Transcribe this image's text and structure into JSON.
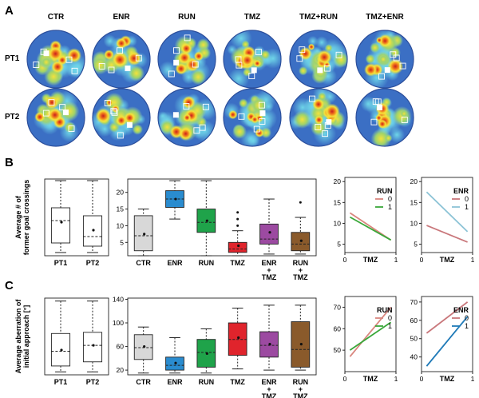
{
  "panel_labels": {
    "a": "A",
    "b": "B",
    "c": "C"
  },
  "heatmaps": {
    "columns": [
      "CTR",
      "ENR",
      "RUN",
      "TMZ",
      "TMZ+RUN",
      "TMZ+ENR"
    ],
    "rows": [
      "PT1",
      "PT2"
    ]
  },
  "chart_data": [
    {
      "id": "B-left",
      "type": "box",
      "ylabel": "Average # of former goal crossings",
      "categories": [
        "PT1",
        "PT2"
      ],
      "ylim": [
        0,
        24
      ],
      "boxes": [
        {
          "min": 1,
          "q1": 4,
          "median": 11,
          "q3": 15,
          "max": 23.5,
          "mean": 10.5
        },
        {
          "min": 1,
          "q1": 3,
          "median": 6,
          "q3": 12.5,
          "max": 23.5,
          "mean": 8
        }
      ],
      "outliers": []
    },
    {
      "id": "B-mid",
      "type": "box",
      "categories": [
        "CTR",
        "ENR",
        "RUN",
        "TMZ",
        "ENR\n+\nTMZ",
        "RUN\n+\nTMZ"
      ],
      "yticks": [
        5,
        10,
        15,
        20
      ],
      "ylim": [
        1,
        24
      ],
      "colors": [
        "#d8d8d8",
        "#2a8ccf",
        "#1fa34a",
        "#e0242c",
        "#9c4aa1",
        "#8a5a2b"
      ],
      "boxes": [
        {
          "min": 1,
          "q1": 2.5,
          "median": 7,
          "q3": 13,
          "max": 15,
          "mean": 7.5
        },
        {
          "min": 12,
          "q1": 15.5,
          "median": 18,
          "q3": 20.5,
          "max": 23.5,
          "mean": 18
        },
        {
          "min": 1,
          "q1": 8,
          "median": 11,
          "q3": 15,
          "max": 23.5,
          "mean": 11.5
        },
        {
          "min": 1,
          "q1": 2,
          "median": 3,
          "q3": 5,
          "max": 8.5,
          "mean": 4
        },
        {
          "min": 1.5,
          "q1": 4.5,
          "median": 6,
          "q3": 10.5,
          "max": 18,
          "mean": 8
        },
        {
          "min": 1.5,
          "q1": 2.5,
          "median": 4.5,
          "q3": 8,
          "max": 12.5,
          "mean": 5.5
        }
      ],
      "outliers": [
        [],
        [],
        [],
        [
          10,
          12,
          14
        ],
        [],
        [
          17
        ]
      ]
    },
    {
      "id": "B-run",
      "type": "line",
      "xlabel": "TMZ",
      "xticks": [
        0,
        1
      ],
      "yticks": [
        5,
        10,
        15,
        20
      ],
      "ylim": [
        3,
        21
      ],
      "legend_title": "RUN",
      "series": [
        {
          "name": "0",
          "color": "#d9867e",
          "x": [
            0.1,
            0.9
          ],
          "y": [
            12.5,
            6
          ]
        },
        {
          "name": "1",
          "color": "#3aa83a",
          "x": [
            0.1,
            0.9
          ],
          "y": [
            11.5,
            6
          ]
        }
      ]
    },
    {
      "id": "B-enr",
      "type": "line",
      "xlabel": "TMZ",
      "xticks": [
        0,
        1
      ],
      "yticks": [
        5,
        10,
        15,
        20
      ],
      "ylim": [
        3,
        21
      ],
      "legend_title": "ENR",
      "series": [
        {
          "name": "0",
          "color": "#c9777b",
          "x": [
            0.1,
            0.9
          ],
          "y": [
            9.5,
            5.5
          ]
        },
        {
          "name": "1",
          "color": "#8cc3d6",
          "x": [
            0.1,
            0.9
          ],
          "y": [
            17.5,
            8
          ]
        }
      ]
    },
    {
      "id": "C-left",
      "type": "box",
      "ylabel": "Average aberration of initial approach [°]",
      "categories": [
        "PT1",
        "PT2"
      ],
      "ylim": [
        10,
        140
      ],
      "boxes": [
        {
          "min": 15,
          "q1": 25,
          "median": 50,
          "q3": 80,
          "max": 135,
          "mean": 52
        },
        {
          "min": 15,
          "q1": 32,
          "median": 60,
          "q3": 82,
          "max": 135,
          "mean": 60
        }
      ],
      "outliers": []
    },
    {
      "id": "C-mid",
      "type": "box",
      "categories": [
        "CTR",
        "ENR",
        "RUN",
        "TMZ",
        "ENR\n+\nTMZ",
        "RUN\n+\nTMZ"
      ],
      "yticks": [
        20,
        60,
        100,
        140
      ],
      "ylim": [
        12,
        142
      ],
      "colors": [
        "#d8d8d8",
        "#2a8ccf",
        "#1fa34a",
        "#e0242c",
        "#9c4aa1",
        "#8a5a2b"
      ],
      "boxes": [
        {
          "min": 15,
          "q1": 38,
          "median": 58,
          "q3": 80,
          "max": 93,
          "mean": 60
        },
        {
          "min": 15,
          "q1": 20,
          "median": 28,
          "q3": 42,
          "max": 75,
          "mean": 32
        },
        {
          "min": 15,
          "q1": 25,
          "median": 50,
          "q3": 72,
          "max": 90,
          "mean": 48
        },
        {
          "min": 22,
          "q1": 45,
          "median": 72,
          "q3": 100,
          "max": 125,
          "mean": 75
        },
        {
          "min": 20,
          "q1": 42,
          "median": 62,
          "q3": 85,
          "max": 130,
          "mean": 64
        },
        {
          "min": 20,
          "q1": 25,
          "median": 55,
          "q3": 102,
          "max": 130,
          "mean": 64
        }
      ],
      "outliers": [
        [],
        [],
        [],
        [],
        [],
        []
      ]
    },
    {
      "id": "C-run",
      "type": "line",
      "xlabel": "TMZ",
      "xticks": [
        0,
        1
      ],
      "yticks": [
        50,
        60,
        70
      ],
      "ylim": [
        40,
        75
      ],
      "legend_title": "RUN",
      "series": [
        {
          "name": "0",
          "color": "#d9867e",
          "x": [
            0.1,
            0.9
          ],
          "y": [
            47,
            70
          ]
        },
        {
          "name": "1",
          "color": "#3aa83a",
          "x": [
            0.1,
            0.9
          ],
          "y": [
            50,
            63
          ]
        }
      ]
    },
    {
      "id": "C-enr",
      "type": "line",
      "xlabel": "TMZ",
      "xticks": [
        0,
        1
      ],
      "yticks": [
        40,
        50,
        60,
        70
      ],
      "ylim": [
        32,
        73
      ],
      "legend_title": "ENR",
      "series": [
        {
          "name": "0",
          "color": "#c9777b",
          "x": [
            0.1,
            0.9
          ],
          "y": [
            53,
            70
          ]
        },
        {
          "name": "1",
          "color": "#1f7ab8",
          "x": [
            0.1,
            0.9
          ],
          "y": [
            35,
            62
          ]
        }
      ]
    }
  ]
}
